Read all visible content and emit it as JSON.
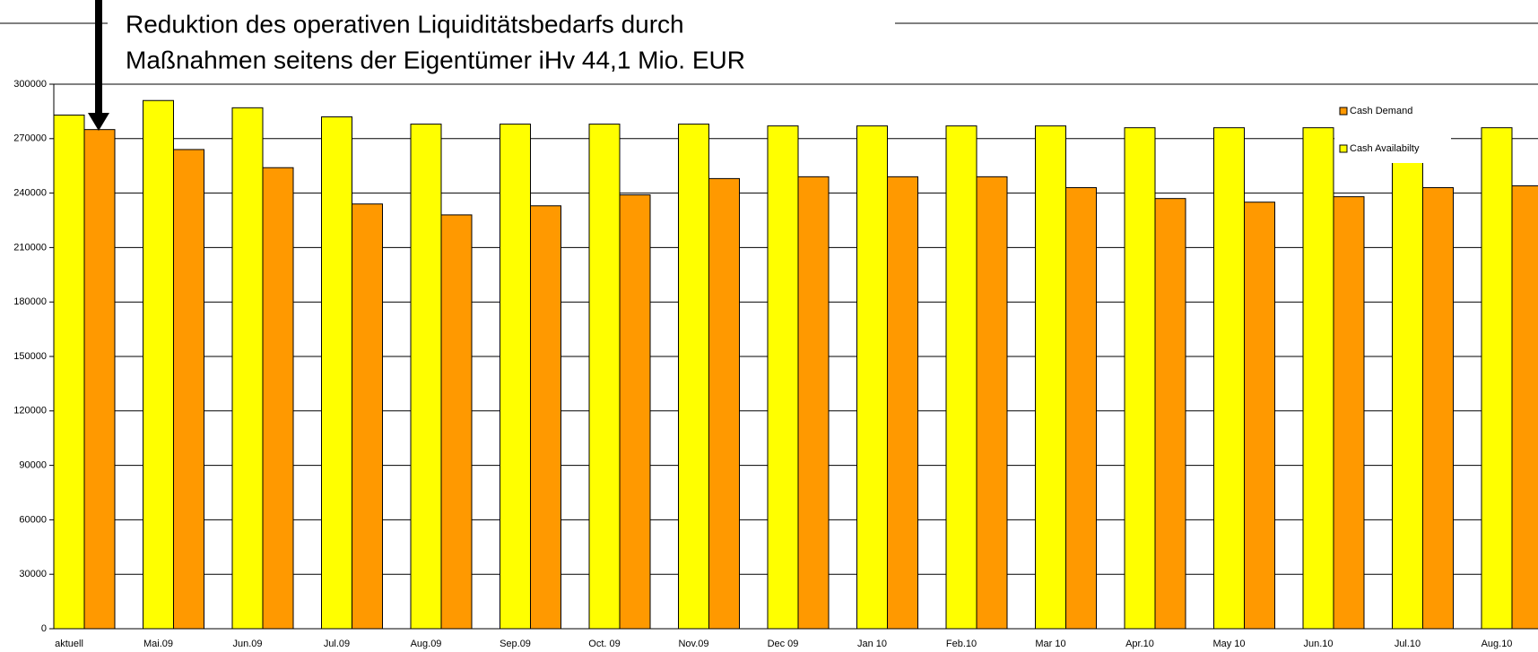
{
  "chart_data": {
    "type": "bar",
    "annotation": [
      "Reduktion des operativen Liquiditätsbedarfs durch",
      "Maßnahmen seitens der Eigentümer iHv 44,1 Mio. EUR"
    ],
    "categories": [
      "aktuell",
      "Mai.09",
      "Jun.09",
      "Jul.09",
      "Aug.09",
      "Sep.09",
      "Oct. 09",
      "Nov.09",
      "Dec 09",
      "Jan 10",
      "Feb.10",
      "Mar 10",
      "Apr.10",
      "May 10",
      "Jun.10",
      "Jul.10",
      "Aug.10"
    ],
    "series": [
      {
        "name": "Cash Availabilty",
        "color": "#ffff00",
        "values": [
          283000,
          291000,
          287000,
          282000,
          278000,
          278000,
          278000,
          278000,
          277000,
          277000,
          277000,
          277000,
          276000,
          276000,
          276000,
          276000,
          276000
        ]
      },
      {
        "name": "Cash Demand",
        "color": "#ff9900",
        "values": [
          275000,
          264000,
          254000,
          234000,
          228000,
          233000,
          239000,
          248000,
          249000,
          249000,
          249000,
          243000,
          237000,
          235000,
          238000,
          243000,
          244000
        ]
      }
    ],
    "legend_order": [
      1,
      0
    ],
    "ylim": [
      0,
      300000
    ],
    "yticks": [
      0,
      30000,
      60000,
      90000,
      120000,
      150000,
      180000,
      210000,
      240000,
      270000,
      300000
    ],
    "grid": true
  }
}
